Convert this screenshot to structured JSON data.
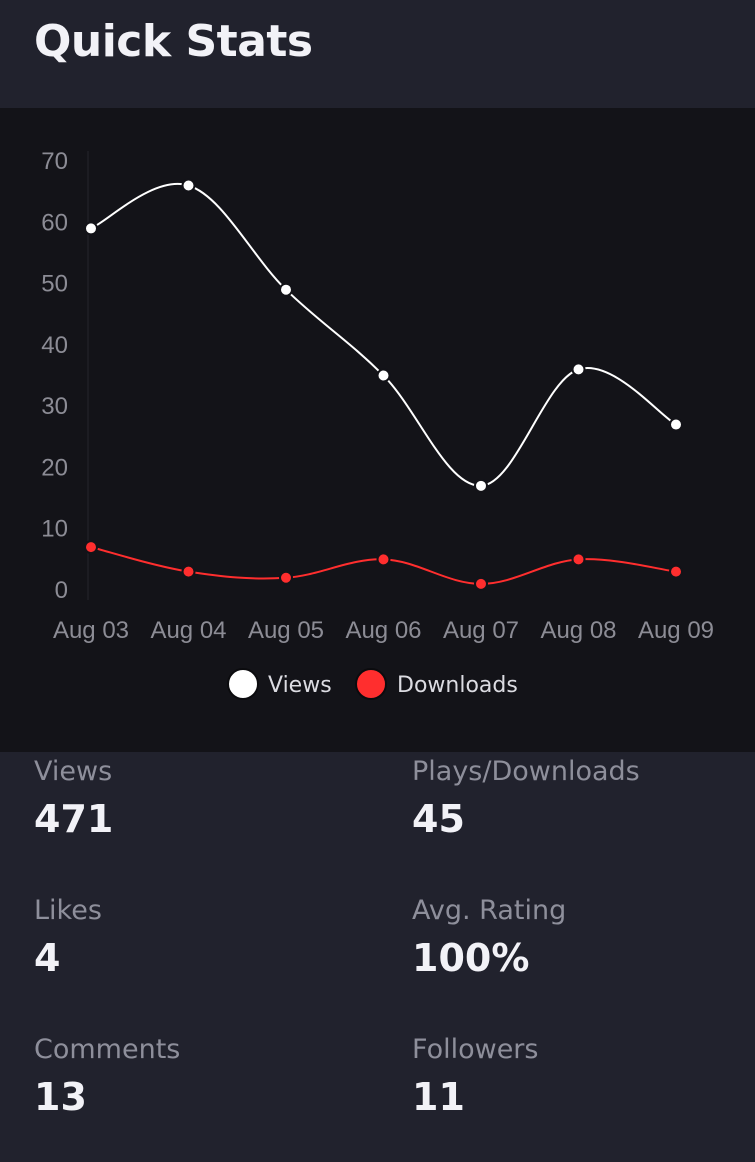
{
  "header": {
    "title": "Quick Stats"
  },
  "colors": {
    "views": "#ffffff",
    "downloads": "#ff2e2e",
    "background": "#21222d",
    "chart_background": "#131318"
  },
  "chart_data": {
    "type": "line",
    "x": [
      "Aug 03",
      "Aug 04",
      "Aug 05",
      "Aug 06",
      "Aug 07",
      "Aug 08",
      "Aug 09"
    ],
    "series": [
      {
        "name": "Views",
        "values": [
          59,
          66,
          49,
          35,
          17,
          36,
          27
        ]
      },
      {
        "name": "Downloads",
        "values": [
          7,
          3,
          2,
          5,
          1,
          5,
          3
        ]
      }
    ],
    "yticks": [
      0,
      10,
      20,
      30,
      40,
      50,
      60,
      70
    ],
    "ylim": [
      0,
      70
    ],
    "legend_position": "bottom",
    "grid": false,
    "curve": "smooth"
  },
  "stats": [
    {
      "label": "Views",
      "value": "471"
    },
    {
      "label": "Plays/Downloads",
      "value": "45"
    },
    {
      "label": "Likes",
      "value": "4"
    },
    {
      "label": "Avg. Rating",
      "value": "100%"
    },
    {
      "label": "Comments",
      "value": "13"
    },
    {
      "label": "Followers",
      "value": "11"
    }
  ]
}
